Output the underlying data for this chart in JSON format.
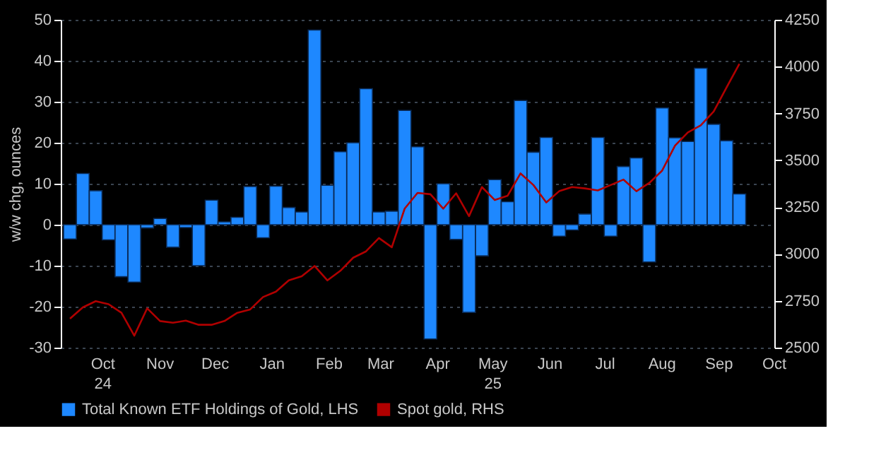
{
  "chart_data": {
    "type": "bar",
    "ylabel": "w/w chg, ounces",
    "legend": "bottom",
    "grid": "y",
    "x": [
      "2024-09-27",
      "2024-10-04",
      "2024-10-11",
      "2024-10-18",
      "2024-10-25",
      "2024-11-01",
      "2024-11-08",
      "2024-11-15",
      "2024-11-22",
      "2024-11-29",
      "2024-12-06",
      "2024-12-13",
      "2024-12-20",
      "2024-12-27",
      "2025-01-03",
      "2025-01-10",
      "2025-01-17",
      "2025-01-24",
      "2025-01-31",
      "2025-02-07",
      "2025-02-14",
      "2025-02-21",
      "2025-02-28",
      "2025-03-07",
      "2025-03-14",
      "2025-03-21",
      "2025-03-28",
      "2025-04-04",
      "2025-04-11",
      "2025-04-18",
      "2025-04-25",
      "2025-05-02",
      "2025-05-09",
      "2025-05-16",
      "2025-05-23",
      "2025-05-30",
      "2025-06-06",
      "2025-06-13",
      "2025-06-20",
      "2025-06-27",
      "2025-07-04",
      "2025-07-11",
      "2025-07-18",
      "2025-07-25",
      "2025-08-01",
      "2025-08-08",
      "2025-08-15",
      "2025-08-22",
      "2025-08-29",
      "2025-09-05",
      "2025-09-12",
      "2025-09-19",
      "2025-09-26"
    ],
    "xlim": [
      "2024-09-22",
      "2025-10-15"
    ],
    "xticks": [
      {
        "value": "2024-10-15",
        "label": "Oct\n24"
      },
      {
        "value": "2024-11-15",
        "label": "Nov"
      },
      {
        "value": "2024-12-15",
        "label": "Dec"
      },
      {
        "value": "2025-01-15",
        "label": "Jan"
      },
      {
        "value": "2025-02-15",
        "label": "Feb"
      },
      {
        "value": "2025-03-15",
        "label": "Mar"
      },
      {
        "value": "2025-04-15",
        "label": "Apr"
      },
      {
        "value": "2025-05-15",
        "label": "May\n25"
      },
      {
        "value": "2025-06-15",
        "label": "Jun"
      },
      {
        "value": "2025-07-15",
        "label": "Jul"
      },
      {
        "value": "2025-08-15",
        "label": "Aug"
      },
      {
        "value": "2025-09-15",
        "label": "Sep"
      },
      {
        "value": "2025-10-15",
        "label": "Oct"
      }
    ],
    "ylim": [
      -30,
      50
    ],
    "yticks": [
      -30,
      -20,
      -10,
      0,
      10,
      20,
      30,
      40,
      50
    ],
    "y2lim": [
      2500,
      4250
    ],
    "y2ticks": [
      2500,
      2750,
      3000,
      3250,
      3500,
      3750,
      4000,
      4250
    ],
    "series": [
      {
        "name": "Total Known ETF Holdings of Gold, LHS",
        "color": "#1e88ff",
        "values": [
          -3.5,
          12.5,
          8.3,
          -3.7,
          -12.7,
          -14,
          -0.8,
          1.5,
          -5.5,
          -0.7,
          -10,
          6,
          0.7,
          1.8,
          9.3,
          -3.2,
          9.4,
          4.2,
          3.1,
          47.5,
          9.6,
          17.8,
          20,
          33.2,
          3.1,
          3.3,
          27.9,
          19,
          -27.9,
          10,
          -3.6,
          -21.4,
          -7.6,
          11,
          5.6,
          30.3,
          17.7,
          21.3,
          -2.8,
          -1.3,
          2.6,
          21.3,
          -2.8,
          14.2,
          16.3,
          -9.1,
          28.5,
          21.2,
          20.3,
          38.2,
          24.5,
          20.5,
          7.5
        ]
      },
      {
        "name": "Spot gold, RHS",
        "type": "line",
        "axis": "y2",
        "color": "#b00000",
        "values": [
          2655,
          2715,
          2748,
          2732,
          2686,
          2564,
          2710,
          2642,
          2633,
          2644,
          2622,
          2622,
          2642,
          2686,
          2704,
          2770,
          2799,
          2859,
          2881,
          2936,
          2859,
          2910,
          2980,
          3014,
          3085,
          3036,
          3242,
          3326,
          3319,
          3242,
          3324,
          3202,
          3357,
          3288,
          3311,
          3430,
          3368,
          3275,
          3335,
          3357,
          3350,
          3339,
          3368,
          3397,
          3335,
          3379,
          3445,
          3578,
          3649,
          3687,
          3760,
          3888,
          4015
        ]
      }
    ]
  }
}
